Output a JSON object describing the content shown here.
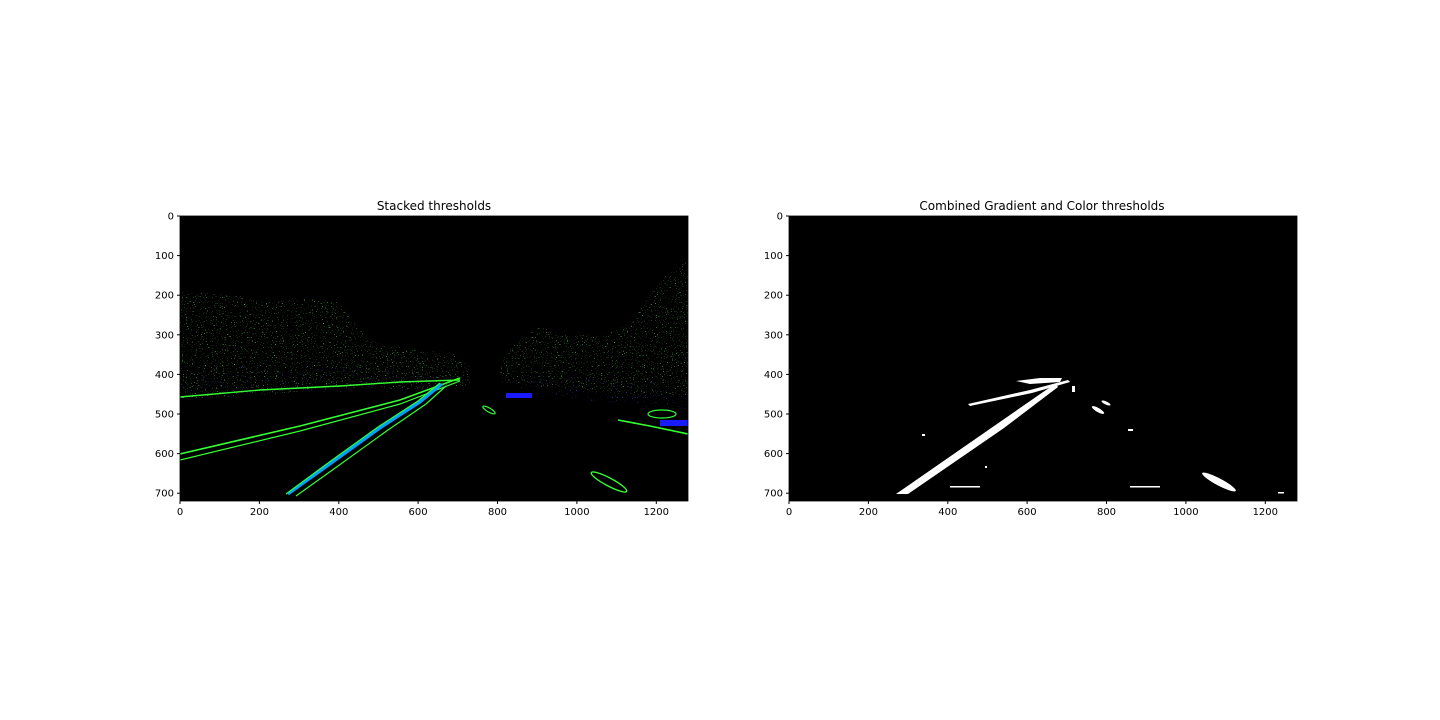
{
  "figure": {
    "panels": [
      {
        "id": "stacked",
        "title": "Stacked thresholds",
        "xticks": [
          0,
          200,
          400,
          600,
          800,
          1000,
          1200
        ],
        "yticks": [
          0,
          100,
          200,
          300,
          400,
          500,
          600,
          700
        ],
        "xlim": [
          0,
          1280
        ],
        "ylim": [
          720,
          0
        ],
        "background": "#000000",
        "colors": {
          "gradient": "#33ff33",
          "color": "#1a1aff",
          "overlap": "#00a0ff"
        }
      },
      {
        "id": "combined",
        "title": "Combined Gradient and Color thresholds",
        "xticks": [
          0,
          200,
          400,
          600,
          800,
          1000,
          1200
        ],
        "yticks": [
          0,
          100,
          200,
          300,
          400,
          500,
          600,
          700
        ],
        "xlim": [
          0,
          1280
        ],
        "ylim": [
          720,
          0
        ],
        "background": "#000000",
        "colors": {
          "pixel": "#ffffff"
        }
      }
    ]
  }
}
